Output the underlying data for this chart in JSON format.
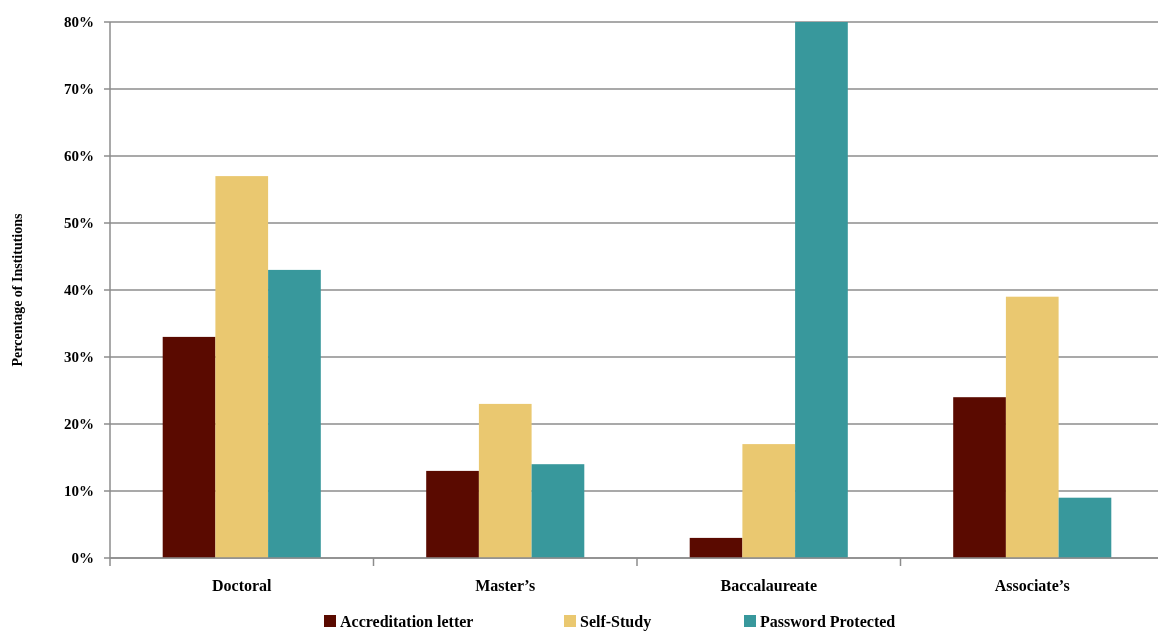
{
  "chart_data": {
    "type": "bar",
    "ylabel": "Percentage of Institutions",
    "categories": [
      "Doctoral",
      "Master’s",
      "Baccalaureate",
      "Associate’s"
    ],
    "series": [
      {
        "name": "Accreditation letter",
        "color": "#5a0a00",
        "values": [
          33,
          13,
          3,
          24
        ]
      },
      {
        "name": "Self-Study",
        "color": "#eac870",
        "values": [
          57,
          23,
          17,
          39
        ]
      },
      {
        "name": "Password Protected",
        "color": "#38989c",
        "values": [
          43,
          14,
          80,
          9
        ]
      }
    ],
    "ylim": [
      0,
      80
    ],
    "yticks": [
      {
        "value": 0,
        "label": "0%"
      },
      {
        "value": 10,
        "label": "10%"
      },
      {
        "value": 20,
        "label": "20%"
      },
      {
        "value": 30,
        "label": "30%"
      },
      {
        "value": 40,
        "label": "40%"
      },
      {
        "value": 50,
        "label": "50%"
      },
      {
        "value": 60,
        "label": "60%"
      },
      {
        "value": 70,
        "label": "70%"
      },
      {
        "value": 80,
        "label": "80%"
      }
    ],
    "grid": "y",
    "legend": "bottom"
  }
}
